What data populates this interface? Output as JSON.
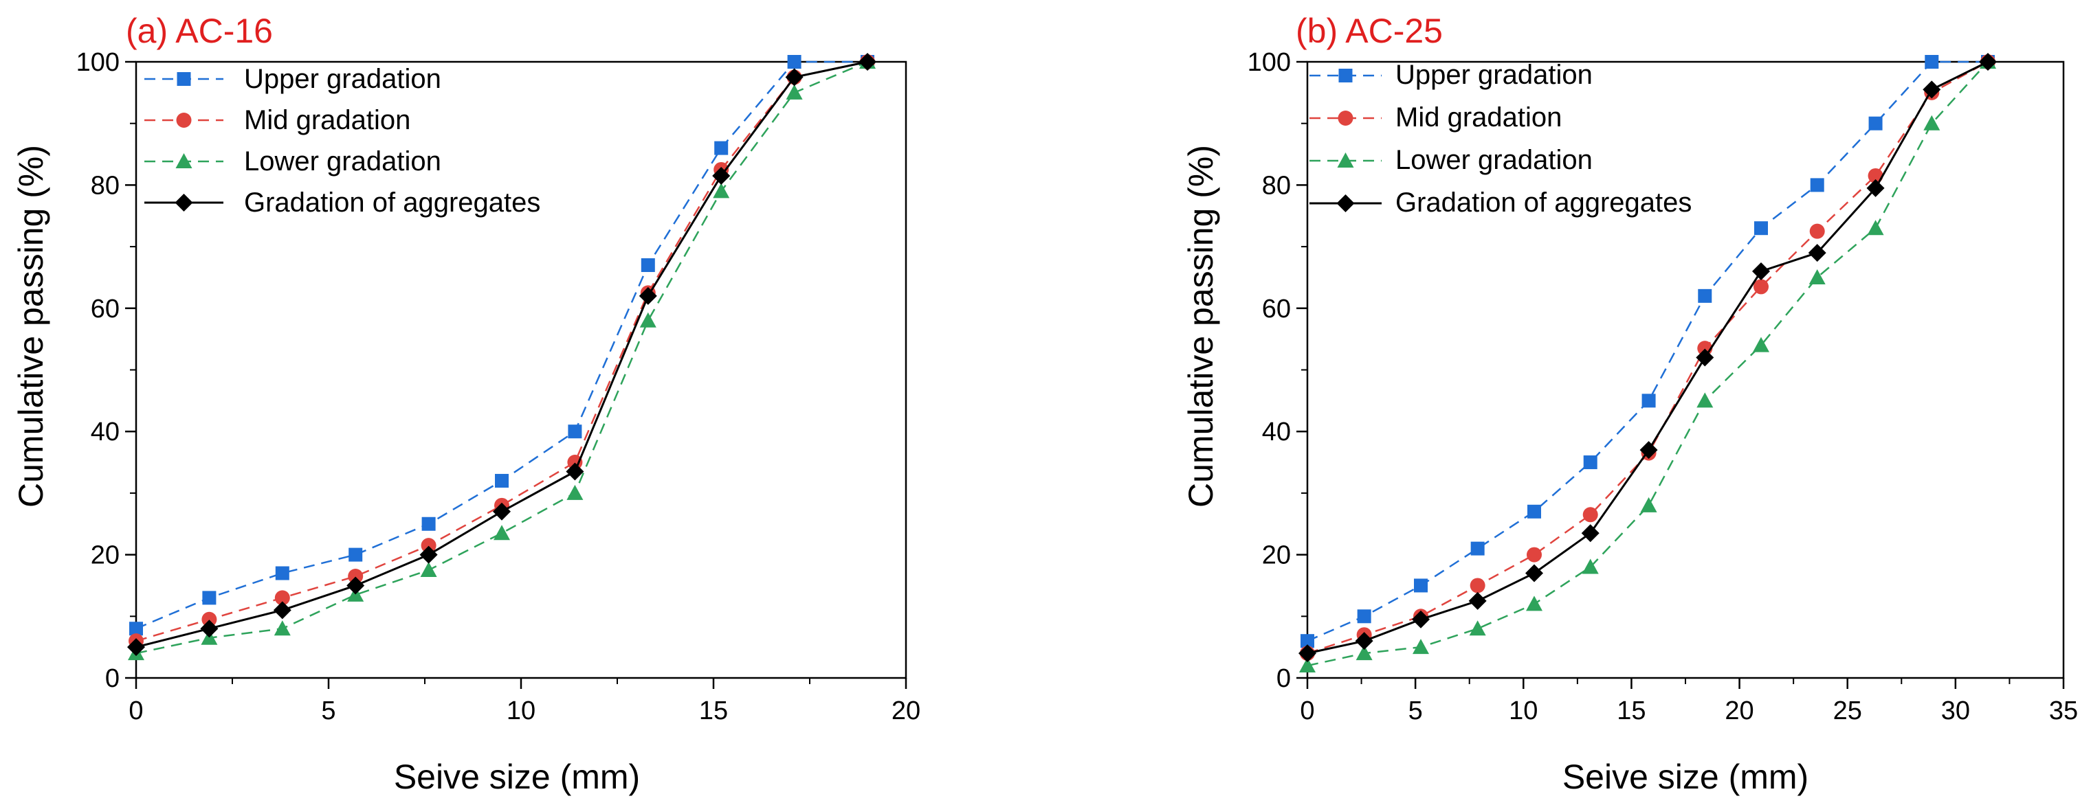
{
  "colors": {
    "upper": "#1f6fd6",
    "mid": "#e0443e",
    "lower": "#2ea35b",
    "actual": "#000000",
    "panel_label": "#e01f1f"
  },
  "chart_data": [
    {
      "type": "line",
      "panel_label": "(a) AC-16",
      "xlabel": "Seive size (mm)",
      "ylabel": "Cumulative passing (%)",
      "xlim": [
        0,
        20
      ],
      "ylim": [
        0,
        100
      ],
      "xticks": [
        "0",
        "5",
        "10",
        "15",
        "20"
      ],
      "yticks": [
        "0",
        "20",
        "40",
        "60",
        "80",
        "100"
      ],
      "x": [
        0,
        1.9,
        3.8,
        5.7,
        7.6,
        9.5,
        11.4,
        13.3,
        15.2,
        17.1,
        19
      ],
      "legend_position": "top-left",
      "series": [
        {
          "key": "upper",
          "name": "Upper gradation",
          "style": "dashed",
          "marker": "square",
          "values": [
            8,
            13,
            17,
            20,
            25,
            32,
            40,
            67,
            86,
            100,
            100
          ]
        },
        {
          "key": "mid",
          "name": "Mid gradation",
          "style": "dashed",
          "marker": "circle",
          "values": [
            6,
            9.5,
            13,
            16.5,
            21.5,
            28,
            35,
            62.5,
            82.5,
            97.5,
            100
          ]
        },
        {
          "key": "lower",
          "name": "Lower gradation",
          "style": "dashed",
          "marker": "triangle",
          "values": [
            4,
            6.5,
            8,
            13.5,
            17.5,
            23.5,
            30,
            58,
            79,
            95,
            100
          ]
        },
        {
          "key": "actual",
          "name": "Gradation of aggregates",
          "style": "solid",
          "marker": "diamond",
          "values": [
            5,
            8,
            11,
            15,
            20,
            27,
            33.5,
            62,
            81.5,
            97.5,
            100
          ]
        }
      ]
    },
    {
      "type": "line",
      "panel_label": "(b) AC-25",
      "xlabel": "Seive size (mm)",
      "ylabel": "Cumulative passing (%)",
      "xlim": [
        0,
        35
      ],
      "ylim": [
        0,
        100
      ],
      "xticks": [
        "0",
        "5",
        "10",
        "15",
        "20",
        "25",
        "30",
        "35"
      ],
      "yticks": [
        "0",
        "20",
        "40",
        "60",
        "80",
        "100"
      ],
      "x": [
        0,
        2.63,
        5.25,
        7.88,
        10.5,
        13.1,
        15.8,
        18.4,
        21,
        23.6,
        26.3,
        28.9,
        31.5
      ],
      "legend_position": "top-left",
      "series": [
        {
          "key": "upper",
          "name": "Upper gradation",
          "style": "dashed",
          "marker": "square",
          "values": [
            6,
            10,
            15,
            21,
            27,
            35,
            45,
            62,
            73,
            80,
            90,
            100,
            100
          ]
        },
        {
          "key": "mid",
          "name": "Mid gradation",
          "style": "dashed",
          "marker": "circle",
          "values": [
            4,
            7,
            10,
            15,
            20,
            26.5,
            36.5,
            53.5,
            63.5,
            72.5,
            81.5,
            95,
            100
          ]
        },
        {
          "key": "lower",
          "name": "Lower gradation",
          "style": "dashed",
          "marker": "triangle",
          "values": [
            2,
            4,
            5,
            8,
            12,
            18,
            28,
            45,
            54,
            65,
            73,
            90,
            100
          ]
        },
        {
          "key": "actual",
          "name": "Gradation of aggregates",
          "style": "solid",
          "marker": "diamond",
          "values": [
            4,
            6,
            9.5,
            12.5,
            17,
            23.5,
            37,
            52,
            66,
            69,
            79.5,
            95.5,
            100
          ]
        }
      ]
    }
  ]
}
